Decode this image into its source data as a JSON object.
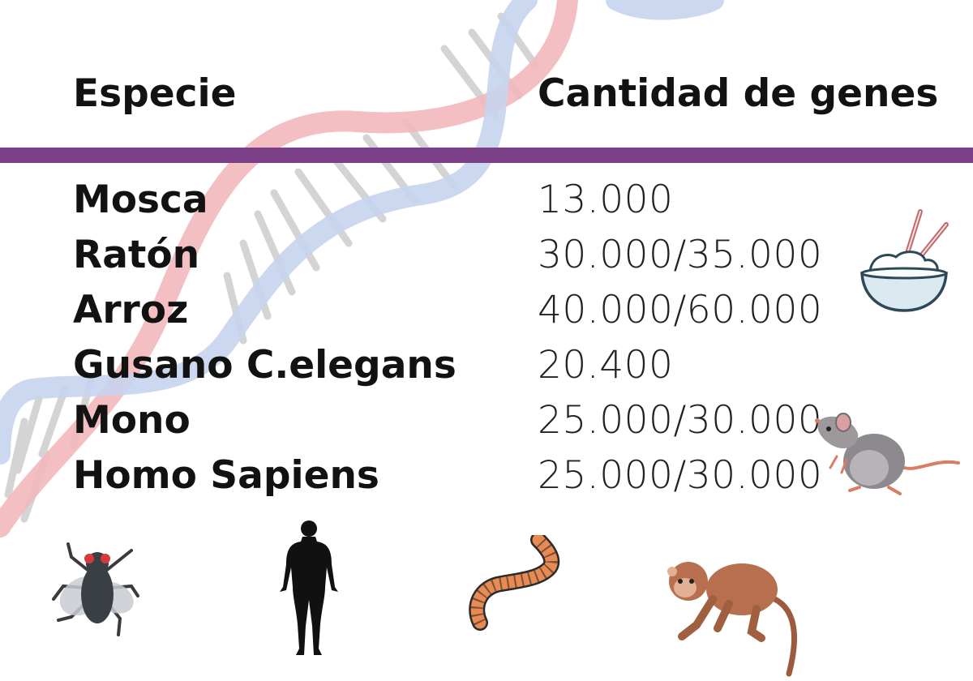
{
  "table": {
    "headers": {
      "species": "Especie",
      "genes": "Cantidad de genes"
    },
    "rows": [
      {
        "species": "Mosca",
        "genes": "13.000"
      },
      {
        "species": "Ratón",
        "genes": "30.000/35.000"
      },
      {
        "species": "Arroz",
        "genes": "40.000/60.000"
      },
      {
        "species": "Gusano C.elegans",
        "genes": "20.400"
      },
      {
        "species": "Mono",
        "genes": "25.000/30.000"
      },
      {
        "species": "Homo Sapiens",
        "genes": "25.000/30.000"
      }
    ]
  },
  "colors": {
    "divider": "#7b3f87",
    "helix_red": "#f2b8bd",
    "helix_blue": "#c6d4ee",
    "helix_rungs": "#d0d0d0"
  },
  "illustrations": [
    "rice-bowl-icon",
    "rat-icon",
    "fly-icon",
    "human-silhouette-icon",
    "worm-icon",
    "monkey-icon",
    "dna-helix-icon"
  ]
}
